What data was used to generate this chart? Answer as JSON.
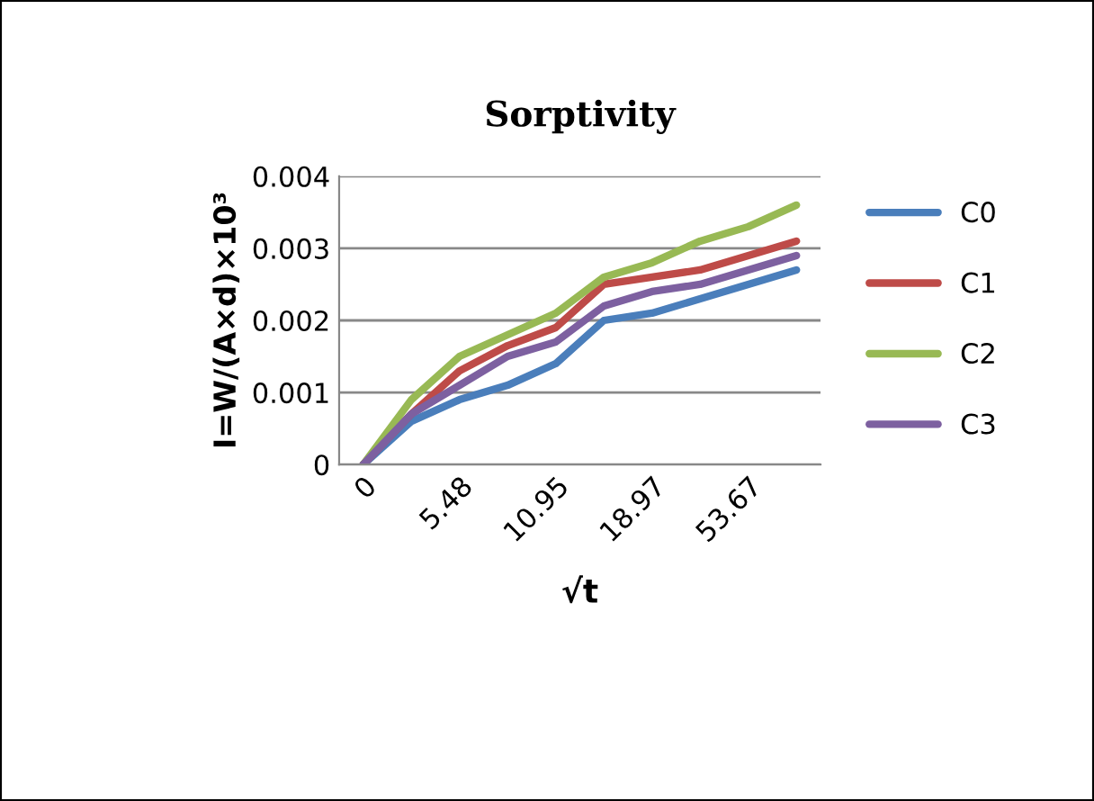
{
  "chart_data": {
    "type": "line",
    "title": "Sorptivity",
    "xlabel": "√t",
    "ylabel": "I=W/(A×d)×10³",
    "categories": [
      "0",
      null,
      "5.48",
      null,
      "10.95",
      null,
      "18.97",
      null,
      "53.67",
      null
    ],
    "series": [
      {
        "name": "C0",
        "color": "#4a7ebb",
        "values": [
          0,
          0.0006,
          0.0009,
          0.0011,
          0.0014,
          0.002,
          0.0021,
          0.0023,
          0.0025,
          0.0027
        ]
      },
      {
        "name": "C1",
        "color": "#be4b48",
        "values": [
          0,
          0.0007,
          0.0013,
          0.00165,
          0.0019,
          0.0025,
          0.0026,
          0.0027,
          0.0029,
          0.0031
        ]
      },
      {
        "name": "C2",
        "color": "#98b954",
        "values": [
          0,
          0.0009,
          0.0015,
          0.0018,
          0.0021,
          0.0026,
          0.0028,
          0.0031,
          0.0033,
          0.0036
        ]
      },
      {
        "name": "C3",
        "color": "#7d60a0",
        "values": [
          0,
          0.0007,
          0.0011,
          0.0015,
          0.0017,
          0.0022,
          0.0024,
          0.0025,
          0.0027,
          0.0029
        ]
      }
    ],
    "ylim": [
      0,
      0.004
    ],
    "yticks": [
      0,
      0.001,
      0.002,
      0.003,
      0.004
    ],
    "grid": "y",
    "legend": "right",
    "marker": "none",
    "line_style": "solid"
  }
}
